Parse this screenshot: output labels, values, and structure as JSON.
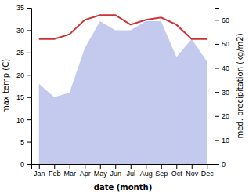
{
  "chart_data": {
    "type": "area",
    "xlabel": "date (month)",
    "ylabel": "max temp (C)",
    "y2label": "med. precipitation (kg/m2)",
    "categories": [
      "Jan",
      "Feb",
      "Mar",
      "Apr",
      "May",
      "Jun",
      "Jul",
      "Aug",
      "Sep",
      "Oct",
      "Nov",
      "Dec"
    ],
    "series": [
      {
        "type": "area",
        "color": "#b0b8e8",
        "values": [
          18,
          15,
          16,
          26,
          32,
          30,
          30,
          32,
          32,
          24,
          28,
          23
        ]
      },
      {
        "type": "line",
        "color": "#cc3333",
        "axis": "y2",
        "values": [
          52,
          52,
          54,
          60,
          62,
          62,
          58,
          60,
          61,
          58,
          52,
          52
        ]
      }
    ],
    "ylim": [
      0,
      35
    ],
    "yticks": [
      0,
      5,
      10,
      15,
      20,
      25,
      30,
      35
    ],
    "y2lim": [
      0,
      65
    ],
    "y2ticks": [
      0,
      10,
      20,
      30,
      40,
      50,
      60
    ],
    "grid": false
  }
}
